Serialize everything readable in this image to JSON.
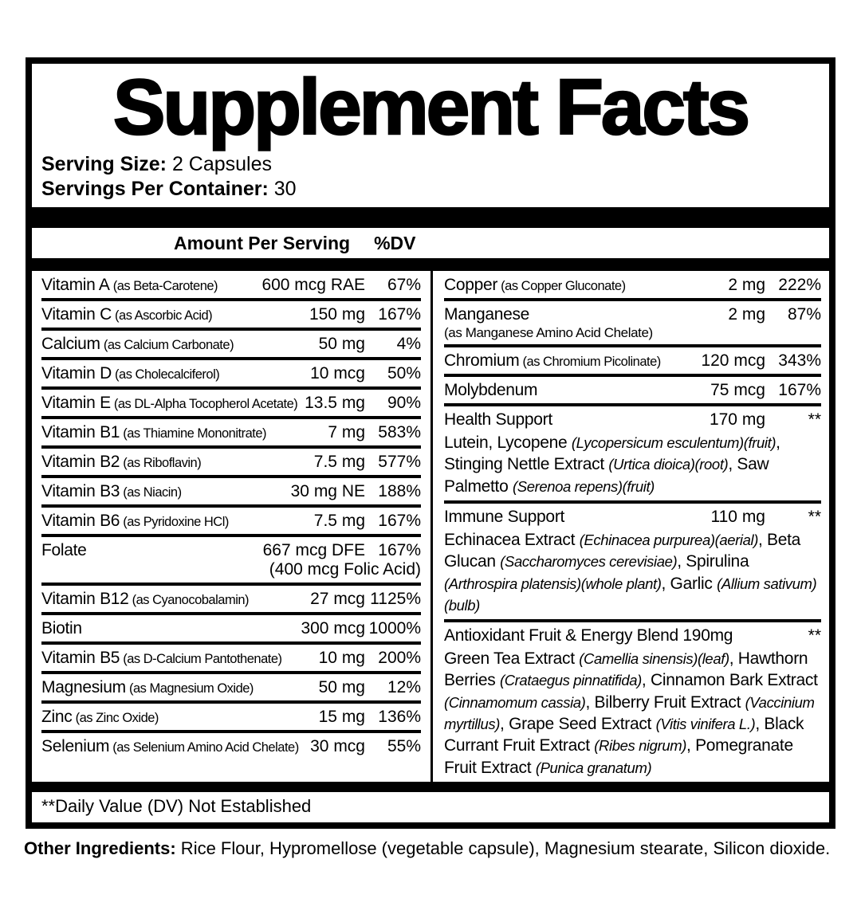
{
  "colors": {
    "ink": "#000000",
    "paper": "#ffffff"
  },
  "title": "Supplement Facts",
  "serving": {
    "size_label": "Serving Size:",
    "size_value": " 2 Capsules",
    "container_label": "Servings Per Container:",
    "container_value": " 30"
  },
  "table_header": {
    "amount": "Amount Per Serving",
    "dv": "%DV"
  },
  "left_rows": [
    {
      "name": "Vitamin A",
      "detail": "(as Beta-Carotene)",
      "amount": "600 mcg RAE",
      "dv": "67%"
    },
    {
      "name": "Vitamin C",
      "detail": "(as Ascorbic Acid)",
      "amount": "150 mg",
      "dv": "167%"
    },
    {
      "name": "Calcium",
      "detail": "(as Calcium Carbonate)",
      "amount": "50 mg",
      "dv": "4%"
    },
    {
      "name": "Vitamin D",
      "detail": "(as Cholecalciferol)",
      "amount": "10 mcg",
      "dv": "50%"
    },
    {
      "name": "Vitamin E",
      "detail": "(as DL-Alpha Tocopherol Acetate)",
      "amount": "13.5 mg",
      "dv": "90%"
    },
    {
      "name": "Vitamin B1",
      "detail": "(as Thiamine Mononitrate)",
      "amount": "7 mg",
      "dv": "583%"
    },
    {
      "name": "Vitamin B2",
      "detail": "(as Riboflavin)",
      "amount": "7.5 mg",
      "dv": "577%"
    },
    {
      "name": "Vitamin B3",
      "detail": "(as Niacin)",
      "amount": "30 mg NE",
      "dv": "188%"
    },
    {
      "name": "Vitamin B6",
      "detail": "(as Pyridoxine HCl)",
      "amount": "7.5 mg",
      "dv": "167%"
    },
    {
      "name": "Folate",
      "detail": "",
      "amount": "667 mcg DFE",
      "amount2": "(400 mcg Folic Acid)",
      "dv": "167%"
    },
    {
      "name": "Vitamin B12",
      "detail": "(as Cyanocobalamin)",
      "amount": "27 mcg",
      "dv": "1125%"
    },
    {
      "name": "Biotin",
      "detail": "",
      "amount": "300 mcg",
      "dv": "1000%"
    },
    {
      "name": "Vitamin B5",
      "detail": "(as D-Calcium Pantothenate)",
      "amount": "10 mg",
      "dv": "200%"
    },
    {
      "name": "Magnesium",
      "detail": "(as Magnesium Oxide)",
      "amount": "50 mg",
      "dv": "12%"
    },
    {
      "name": "Zinc",
      "detail": "(as Zinc Oxide)",
      "amount": "15 mg",
      "dv": "136%"
    },
    {
      "name": "Selenium",
      "detail": "(as Selenium Amino Acid Chelate)",
      "amount": "30 mcg",
      "dv": "55%"
    }
  ],
  "right_rows": [
    {
      "name": "Copper",
      "detail": "(as Copper Gluconate)",
      "amount": "2 mg",
      "dv": "222%"
    },
    {
      "name": "Manganese",
      "detail": "",
      "detail2": "(as Manganese Amino Acid Chelate)",
      "amount": "2 mg",
      "dv": "87%"
    },
    {
      "name": "Chromium",
      "detail": "(as Chromium Picolinate)",
      "amount": "120 mcg",
      "dv": "343%"
    },
    {
      "name": "Molybdenum",
      "detail": "",
      "amount": "75 mcg",
      "dv": "167%"
    },
    {
      "name": "Health Support",
      "detail": "",
      "amount": "170 mg",
      "dv": "**",
      "desc": [
        {
          "t": "Lutein, Lycopene ",
          "i": false
        },
        {
          "t": "(Lycopersicum esculentum)(fruit)",
          "i": true
        },
        {
          "t": ", Stinging Nettle Extract ",
          "i": false
        },
        {
          "t": "(Urtica dioica)(root)",
          "i": true
        },
        {
          "t": ", Saw Palmetto ",
          "i": false
        },
        {
          "t": "(Serenoa repens)(fruit)",
          "i": true
        }
      ]
    },
    {
      "name": "Immune Support",
      "detail": "",
      "amount": "110 mg",
      "dv": "**",
      "desc": [
        {
          "t": "Echinacea Extract ",
          "i": false
        },
        {
          "t": "(Echinacea purpurea)(aerial)",
          "i": true
        },
        {
          "t": ", Beta Glucan ",
          "i": false
        },
        {
          "t": "(Saccharomyces cerevisiae)",
          "i": true
        },
        {
          "t": ", Spirulina ",
          "i": false
        },
        {
          "t": "(Arthrospira platensis)(whole plant)",
          "i": true
        },
        {
          "t": ", Garlic ",
          "i": false
        },
        {
          "t": "(Allium sativum)(bulb)",
          "i": true
        }
      ]
    },
    {
      "name": "Antioxidant Fruit & Energy Blend 190mg",
      "detail": "",
      "amount": "",
      "dv": "**",
      "desc": [
        {
          "t": "Green Tea Extract ",
          "i": false
        },
        {
          "t": "(Camellia sinensis)(leaf)",
          "i": true
        },
        {
          "t": ", Hawthorn Berries ",
          "i": false
        },
        {
          "t": "(Crataegus pinnatifida)",
          "i": true
        },
        {
          "t": ", Cinnamon Bark Extract ",
          "i": false
        },
        {
          "t": "(Cinnamomum cassia)",
          "i": true
        },
        {
          "t": ", Bilberry Fruit Extract ",
          "i": false
        },
        {
          "t": "(Vaccinium myrtillus)",
          "i": true
        },
        {
          "t": ", Grape Seed Extract ",
          "i": false
        },
        {
          "t": "(Vitis vinifera L.)",
          "i": true
        },
        {
          "t": ", Black Currant Fruit Extract ",
          "i": false
        },
        {
          "t": "(Ribes nigrum)",
          "i": true
        },
        {
          "t": ", Pomegranate Fruit Extract ",
          "i": false
        },
        {
          "t": "(Punica granatum)",
          "i": true
        }
      ]
    }
  ],
  "footnote": "**Daily Value (DV) Not Established",
  "other_ingredients": {
    "label": "Other Ingredients:",
    "value": " Rice Flour, Hypromellose (vegetable capsule), Magnesium stearate, Silicon dioxide."
  }
}
